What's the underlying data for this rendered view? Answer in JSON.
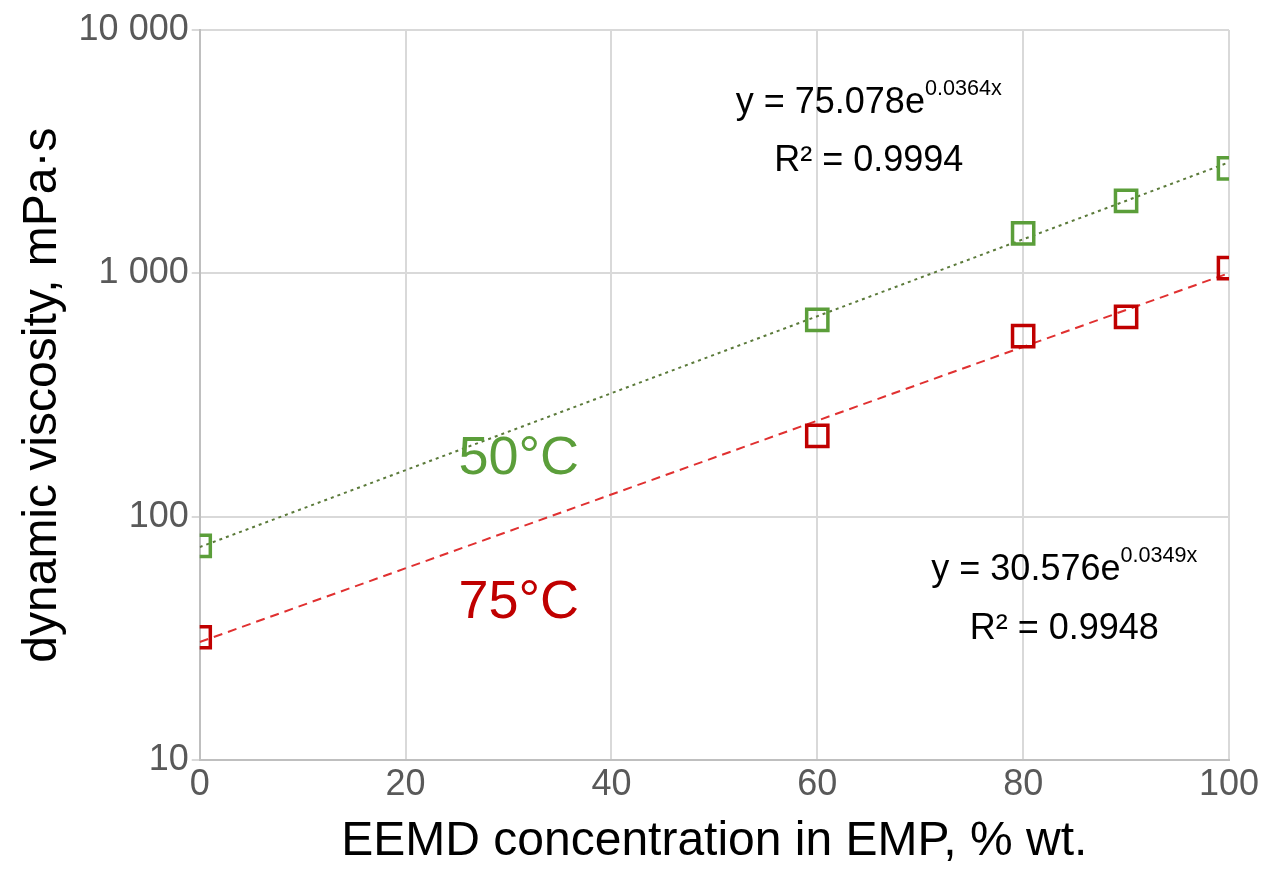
{
  "chart_data": {
    "type": "scatter",
    "xlabel": "EEMD concentration in EMP, % wt.",
    "ylabel": "dynamic viscosity, mPa·s",
    "series": [
      {
        "name": "50°C",
        "color": "#5b9e3a",
        "x": [
          0,
          60,
          80,
          90,
          100
        ],
        "values": [
          76,
          644,
          1460,
          1985,
          2700
        ]
      },
      {
        "name": "75°C",
        "color": "#c00000",
        "x": [
          0,
          60,
          80,
          90,
          100
        ],
        "values": [
          32,
          215,
          552,
          663,
          1052
        ]
      },
      {
        "type": "line",
        "color": "#5b7a3a",
        "line_style": "dotted",
        "marker": "none",
        "x": [
          0,
          100
        ],
        "values": [
          75.078,
          2860
        ]
      },
      {
        "type": "line",
        "color": "#e03030",
        "line_style": "dashed",
        "marker": "none",
        "x": [
          0,
          100
        ],
        "values": [
          30.576,
          1003
        ]
      }
    ],
    "annotations": [
      "y = 75.078e$^{0.0364x}$",
      "R² = 0.9994",
      "y = 30.576e$^{0.0349x}$",
      "R² = 0.9948"
    ],
    "marker": "square",
    "log": "y",
    "grid": true,
    "legend": false,
    "xlim": [
      0,
      100
    ],
    "xticks": [
      0,
      20,
      40,
      60,
      80,
      100
    ],
    "ylim": [
      10,
      10000
    ],
    "yticks": [
      10,
      100,
      {
        "value": 1000,
        "label": "1 000"
      },
      {
        "value": 10000,
        "label": "10 000"
      }
    ]
  }
}
